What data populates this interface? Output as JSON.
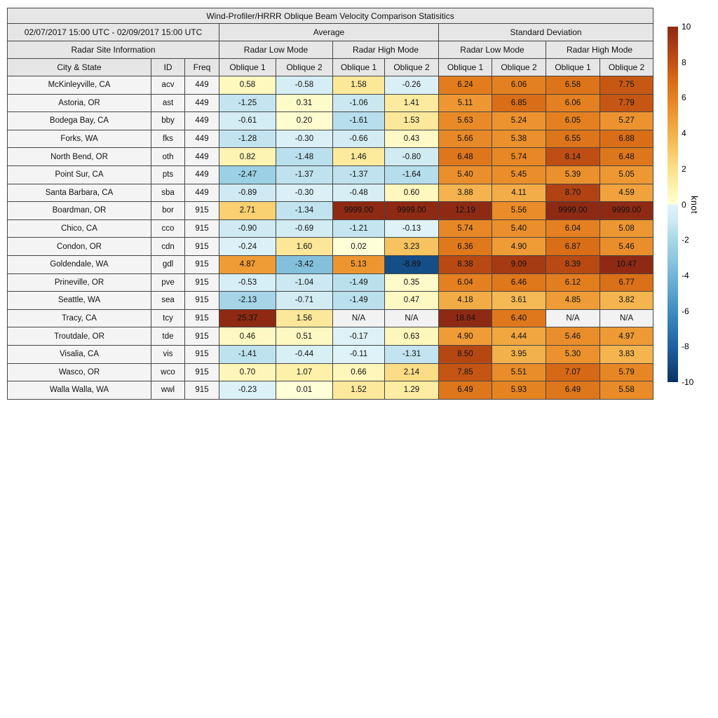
{
  "chart_data": {
    "type": "heatmap-table",
    "title": "Wind-Profiler/HRRR Oblique Beam Velocity Comparison Statisitics",
    "header": {
      "date_range": "02/07/2017 15:00 UTC - 02/09/2017 15:00 UTC",
      "average_label": "Average",
      "stddev_label": "Standard Deviation",
      "site_info_label": "Radar Site Information",
      "mode_headers": [
        "Radar Low Mode",
        "Radar High Mode",
        "Radar Low Mode",
        "Radar High Mode"
      ],
      "columns": [
        "City & State",
        "ID",
        "Freq",
        "Oblique 1",
        "Oblique 2",
        "Oblique 1",
        "Oblique 2",
        "Oblique 1",
        "Oblique 2",
        "Oblique 1",
        "Oblique 2"
      ]
    },
    "rows": [
      {
        "city": "McKinleyville, CA",
        "id": "acv",
        "freq": "449",
        "values": [
          "0.58",
          "-0.58",
          "1.58",
          "-0.26",
          "6.24",
          "6.06",
          "6.58",
          "7.75"
        ]
      },
      {
        "city": "Astoria, OR",
        "id": "ast",
        "freq": "449",
        "values": [
          "-1.25",
          "0.31",
          "-1.06",
          "1.41",
          "5.11",
          "6.85",
          "6.06",
          "7.79"
        ]
      },
      {
        "city": "Bodega Bay, CA",
        "id": "bby",
        "freq": "449",
        "values": [
          "-0.61",
          "0.20",
          "-1.61",
          "1.53",
          "5.63",
          "5.24",
          "6.05",
          "5.27"
        ]
      },
      {
        "city": "Forks, WA",
        "id": "fks",
        "freq": "449",
        "values": [
          "-1.28",
          "-0.30",
          "-0.66",
          "0.43",
          "5.66",
          "5.38",
          "6.55",
          "6.88"
        ]
      },
      {
        "city": "North Bend, OR",
        "id": "oth",
        "freq": "449",
        "values": [
          "0.82",
          "-1.48",
          "1.46",
          "-0.80",
          "6.48",
          "5.74",
          "8.14",
          "6.48"
        ]
      },
      {
        "city": "Point Sur, CA",
        "id": "pts",
        "freq": "449",
        "values": [
          "-2.47",
          "-1.37",
          "-1.37",
          "-1.64",
          "5.40",
          "5.45",
          "5.39",
          "5.05"
        ]
      },
      {
        "city": "Santa Barbara, CA",
        "id": "sba",
        "freq": "449",
        "values": [
          "-0.89",
          "-0.30",
          "-0.48",
          "0.60",
          "3.88",
          "4.11",
          "8.70",
          "4.59"
        ]
      },
      {
        "city": "Boardman, OR",
        "id": "bor",
        "freq": "915",
        "values": [
          "2.71",
          "-1.34",
          "9999.00",
          "9999.00",
          "12.19",
          "5.56",
          "9999.00",
          "9999.00"
        ]
      },
      {
        "city": "Chico, CA",
        "id": "cco",
        "freq": "915",
        "values": [
          "-0.90",
          "-0.69",
          "-1.21",
          "-0.13",
          "5.74",
          "5.40",
          "6.04",
          "5.08"
        ]
      },
      {
        "city": "Condon, OR",
        "id": "cdn",
        "freq": "915",
        "values": [
          "-0.24",
          "1.60",
          "0.02",
          "3.23",
          "6.36",
          "4.90",
          "6.87",
          "5.46"
        ]
      },
      {
        "city": "Goldendale, WA",
        "id": "gdl",
        "freq": "915",
        "values": [
          "4.87",
          "-3.42",
          "5.13",
          "-8.89",
          "8.38",
          "9.09",
          "8.39",
          "10.47"
        ]
      },
      {
        "city": "Prineville, OR",
        "id": "pve",
        "freq": "915",
        "values": [
          "-0.53",
          "-1.04",
          "-1.49",
          "0.35",
          "6.04",
          "6.46",
          "6.12",
          "6.77"
        ]
      },
      {
        "city": "Seattle, WA",
        "id": "sea",
        "freq": "915",
        "values": [
          "-2.13",
          "-0.71",
          "-1.49",
          "0.47",
          "4.18",
          "3.61",
          "4.85",
          "3.82"
        ]
      },
      {
        "city": "Tracy, CA",
        "id": "tcy",
        "freq": "915",
        "values": [
          "25.37",
          "1.56",
          "N/A",
          "N/A",
          "18.84",
          "6.40",
          "N/A",
          "N/A"
        ]
      },
      {
        "city": "Troutdale, OR",
        "id": "tde",
        "freq": "915",
        "values": [
          "0.46",
          "0.51",
          "-0.17",
          "0.63",
          "4.90",
          "4.44",
          "5.46",
          "4.97"
        ]
      },
      {
        "city": "Visalia, CA",
        "id": "vis",
        "freq": "915",
        "values": [
          "-1.41",
          "-0.44",
          "-0.11",
          "-1.31",
          "8.50",
          "3.95",
          "5.30",
          "3.83"
        ]
      },
      {
        "city": "Wasco, OR",
        "id": "wco",
        "freq": "915",
        "values": [
          "0.70",
          "1.07",
          "0.66",
          "2.14",
          "7.85",
          "5.51",
          "7.07",
          "5.79"
        ]
      },
      {
        "city": "Walla Walla, WA",
        "id": "wwl",
        "freq": "915",
        "values": [
          "-0.23",
          "0.01",
          "1.52",
          "1.29",
          "6.49",
          "5.93",
          "6.49",
          "5.58"
        ]
      }
    ],
    "colorbar": {
      "label": "knot",
      "vmin": -10,
      "vmax": 10,
      "ticks": [
        "10",
        "8",
        "6",
        "4",
        "2",
        "0",
        "-2",
        "-4",
        "-6",
        "-8",
        "-10"
      ]
    },
    "colormap": {
      "positive": [
        [
          0,
          "#ffffd8"
        ],
        [
          1,
          "#fdf2ac"
        ],
        [
          2,
          "#fbe08c"
        ],
        [
          3,
          "#f8c968"
        ],
        [
          4,
          "#f3b04a"
        ],
        [
          5,
          "#ee9934"
        ],
        [
          6,
          "#e58120"
        ],
        [
          7,
          "#d76b15"
        ],
        [
          8,
          "#c25113"
        ],
        [
          9,
          "#a83c13"
        ],
        [
          10,
          "#8e2a13"
        ]
      ],
      "negative": [
        [
          0,
          "#e0f3f8"
        ],
        [
          -1,
          "#cde9f2"
        ],
        [
          -2,
          "#a8d7e8"
        ],
        [
          -3,
          "#8ec8df"
        ],
        [
          -4,
          "#74b5d8"
        ],
        [
          -5,
          "#5aa2cd"
        ],
        [
          -6,
          "#3f8dc2"
        ],
        [
          -7,
          "#2d77b3"
        ],
        [
          -8,
          "#1e61a5"
        ],
        [
          -9,
          "#144a83"
        ],
        [
          -10,
          "#0a3263"
        ]
      ],
      "na_bg": "#f2f2f2",
      "header_bg": "#e6e6e6",
      "label_bg": "#f4f4f4",
      "border": "#454545"
    }
  }
}
